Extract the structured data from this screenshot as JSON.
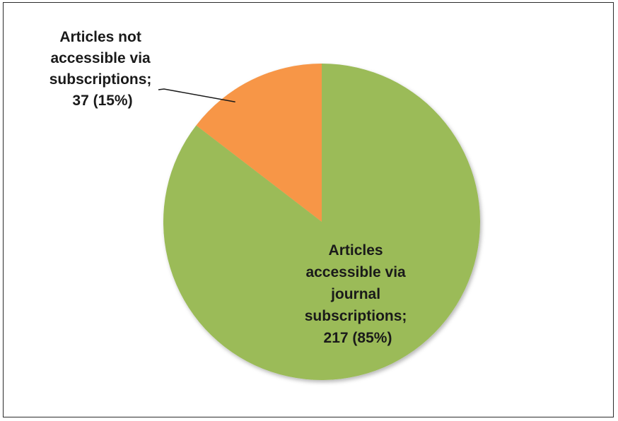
{
  "chart_data": {
    "type": "pie",
    "title": "",
    "slices": [
      {
        "label_lines": [
          "Articles not",
          "accessible via",
          "subscriptions;",
          "37 (15%)"
        ],
        "category": "Articles not accessible via subscriptions",
        "value": 37,
        "percent": "15%",
        "color": "#f79646"
      },
      {
        "label_lines": [
          "Articles",
          "accessible via",
          "journal",
          "subscriptions;",
          "217 (85%)"
        ],
        "category": "Articles accessible via journal subscriptions",
        "value": 217,
        "percent": "85%",
        "color": "#9bbb59"
      }
    ],
    "legend": "none",
    "start_angle_deg": 0,
    "direction": "counterclockwise"
  }
}
